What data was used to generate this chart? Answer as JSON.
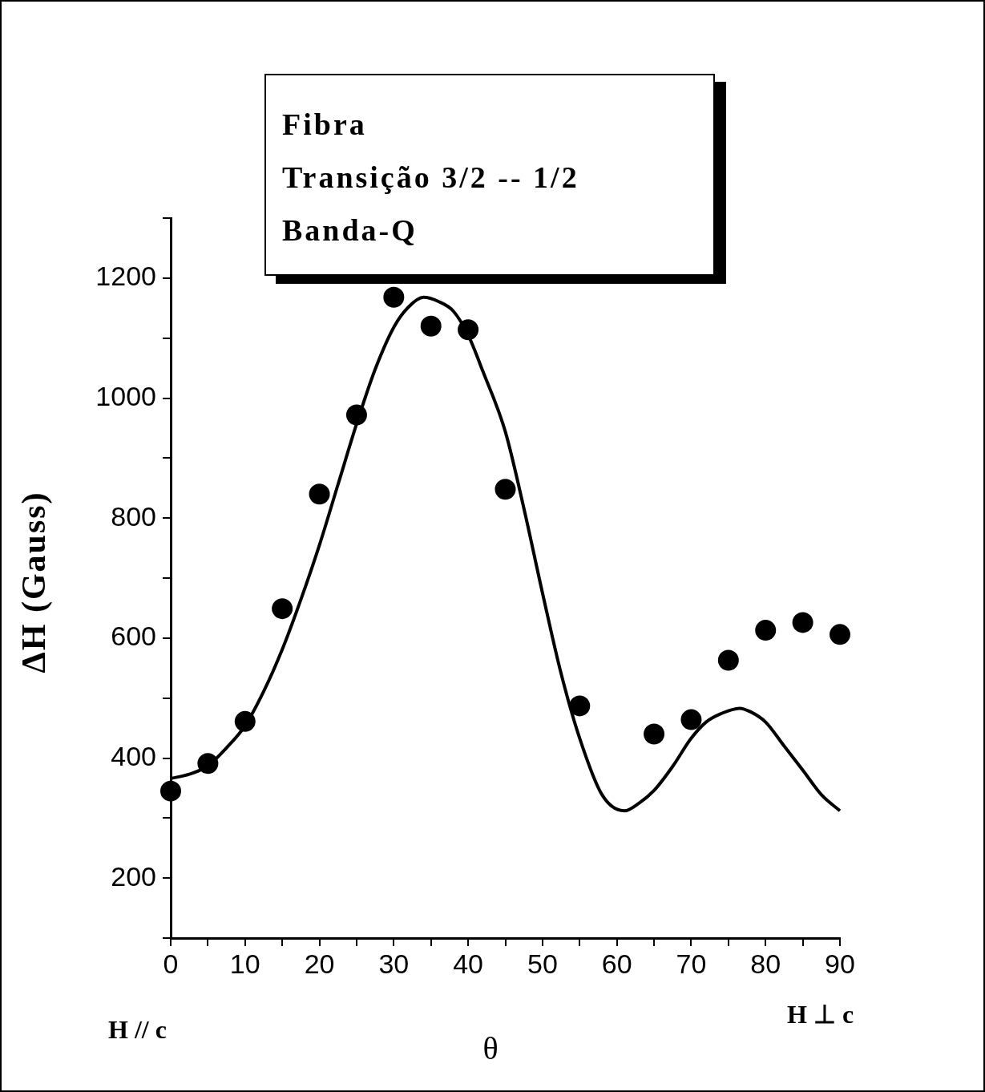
{
  "chart_data": {
    "type": "scatter",
    "xlabel": "θ",
    "ylabel": "ΔH (Gauss)",
    "annotations": [
      "Fibra",
      "Transição 3/2 -- 1/2",
      "Banda-Q",
      "H // c",
      "H ⊥ c"
    ],
    "xlim": [
      0,
      90
    ],
    "ylim": [
      100,
      1300
    ],
    "xticks": [
      0,
      {
        "value": 5,
        "label": null
      },
      10,
      {
        "value": 15,
        "label": null
      },
      20,
      {
        "value": 25,
        "label": null
      },
      30,
      {
        "value": 35,
        "label": null
      },
      40,
      {
        "value": 45,
        "label": null
      },
      50,
      {
        "value": 55,
        "label": null
      },
      60,
      {
        "value": 65,
        "label": null
      },
      70,
      {
        "value": 75,
        "label": null
      },
      80,
      {
        "value": 85,
        "label": null
      },
      90
    ],
    "yticks": [
      {
        "value": 100,
        "label": null
      },
      200,
      {
        "value": 300,
        "label": null
      },
      400,
      {
        "value": 500,
        "label": null
      },
      600,
      {
        "value": 700,
        "label": null
      },
      800,
      {
        "value": 900,
        "label": null
      },
      1000,
      {
        "value": 1100,
        "label": null
      },
      1200,
      {
        "value": 1300,
        "label": null
      }
    ],
    "grid": false,
    "legend": false,
    "series": [
      {
        "type": "scatter",
        "marker": "circle",
        "color": "#000000",
        "x": [
          0,
          5,
          10,
          15,
          20,
          25,
          30,
          35,
          40,
          45,
          55,
          65,
          70,
          75,
          80,
          85,
          90
        ],
        "values": [
          345,
          391,
          461,
          649,
          840,
          972,
          1168,
          1120,
          1114,
          848,
          487,
          440,
          464,
          563,
          613,
          626,
          606
        ]
      },
      {
        "type": "line",
        "marker": "none",
        "line_style": "solid",
        "color": "#000000",
        "x": [
          0,
          2.5,
          5,
          7.5,
          10,
          12.5,
          15,
          17.5,
          20,
          22.5,
          25,
          27.5,
          30,
          32,
          34,
          36,
          38,
          40,
          42,
          45,
          47.5,
          50,
          52.5,
          55,
          58,
          61,
          63,
          65,
          67.5,
          70,
          72,
          74,
          76.5,
          78,
          80,
          82.5,
          85,
          87.5,
          90
        ],
        "values": [
          366,
          373,
          387,
          417,
          454,
          511,
          581,
          664,
          755,
          856,
          957,
          1048,
          1118,
          1152,
          1168,
          1161,
          1145,
          1105,
          1044,
          944,
          816,
          675,
          541,
          433,
          339,
          312,
          325,
          346,
          386,
          433,
          460,
          474,
          483,
          477,
          460,
          420,
          380,
          339,
          312
        ]
      }
    ]
  }
}
